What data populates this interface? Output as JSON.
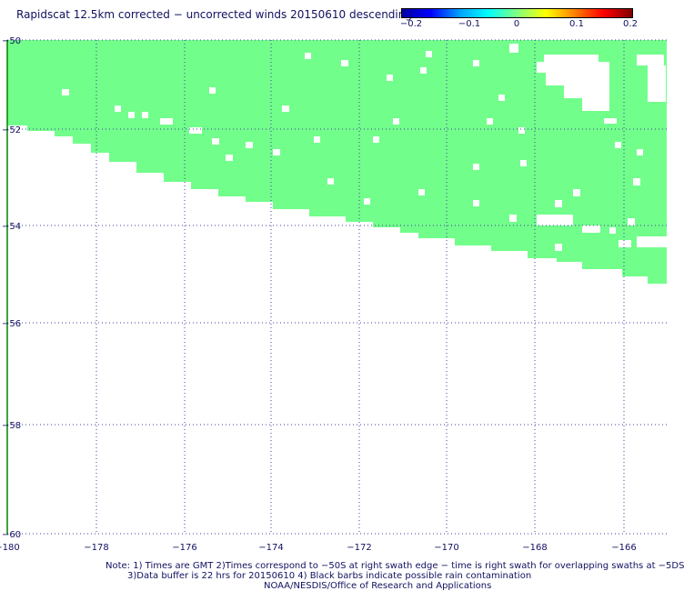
{
  "title": "Rapidscat 12.5km corrected − uncorrected winds 20150610 descending",
  "colorbar": {
    "labels": [
      "−0.2",
      "−0.1",
      "0",
      "0.1",
      "0.2"
    ],
    "stops": [
      "#0000a0",
      "#0000ff",
      "#00a0ff",
      "#00ffff",
      "#80ff80",
      "#ffff00",
      "#ff8000",
      "#ff0000",
      "#800000"
    ]
  },
  "colors": {
    "swath": "#72fe8b",
    "grid": "#4040a0",
    "axis": "#008000",
    "text": "#101060"
  },
  "axes": {
    "lon_labels": [
      "−180",
      "−178",
      "−176",
      "−174",
      "−172",
      "−170",
      "−168",
      "−166"
    ],
    "lat_labels": [
      "−50",
      "−52",
      "−54",
      "−56",
      "−58",
      "−60"
    ]
  },
  "notes": [
    "Note: 1) Times are GMT 2)Times correspond to −50S at right swath edge − time is right swath for overlapping swaths at −5DS",
    "3)Data buffer is 22 hrs for 20150610 4) Black barbs indicate possible rain contamination",
    "NOAA/NESDIS/Office of Research and Applications"
  ]
}
